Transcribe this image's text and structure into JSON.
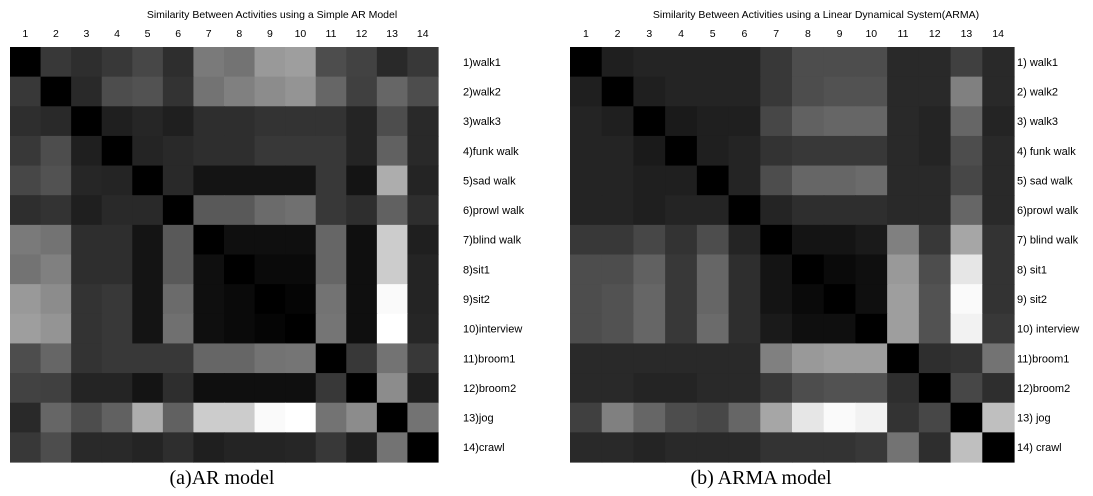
{
  "chart_data": [
    {
      "type": "heatmap",
      "title": "Similarity Between Activities using a Simple AR Model",
      "caption": "(a)AR model",
      "x_tick_labels": [
        "1",
        "2",
        "3",
        "4",
        "5",
        "6",
        "7",
        "8",
        "9",
        "10",
        "11",
        "12",
        "13",
        "14"
      ],
      "row_labels": [
        "1)walk1",
        "2)walk2",
        "3)walk3",
        "4)funk walk",
        "5)sad walk",
        "6)prowl walk",
        "7)blind walk",
        "8)sit1",
        "9)sit2",
        "10)interview",
        "11)broom1",
        "12)broom2",
        "13)jog",
        "14)crawl"
      ],
      "colormap": "grayscale (black = 0, white = 1)",
      "values": [
        [
          0.0,
          0.22,
          0.18,
          0.22,
          0.28,
          0.18,
          0.48,
          0.45,
          0.6,
          0.62,
          0.3,
          0.26,
          0.16,
          0.22
        ],
        [
          0.22,
          0.0,
          0.16,
          0.3,
          0.32,
          0.2,
          0.45,
          0.5,
          0.55,
          0.58,
          0.4,
          0.25,
          0.4,
          0.3
        ],
        [
          0.18,
          0.16,
          0.0,
          0.12,
          0.15,
          0.12,
          0.18,
          0.18,
          0.2,
          0.2,
          0.2,
          0.14,
          0.3,
          0.16
        ],
        [
          0.22,
          0.3,
          0.12,
          0.0,
          0.14,
          0.16,
          0.18,
          0.18,
          0.22,
          0.22,
          0.22,
          0.14,
          0.38,
          0.16
        ],
        [
          0.28,
          0.32,
          0.15,
          0.14,
          0.0,
          0.16,
          0.08,
          0.08,
          0.08,
          0.08,
          0.22,
          0.08,
          0.68,
          0.14
        ],
        [
          0.18,
          0.2,
          0.12,
          0.16,
          0.16,
          0.0,
          0.35,
          0.35,
          0.42,
          0.44,
          0.22,
          0.18,
          0.38,
          0.18
        ],
        [
          0.48,
          0.45,
          0.18,
          0.18,
          0.08,
          0.35,
          0.0,
          0.06,
          0.06,
          0.06,
          0.4,
          0.06,
          0.8,
          0.12
        ],
        [
          0.45,
          0.5,
          0.18,
          0.18,
          0.08,
          0.35,
          0.06,
          0.0,
          0.04,
          0.04,
          0.4,
          0.06,
          0.8,
          0.14
        ],
        [
          0.6,
          0.55,
          0.2,
          0.22,
          0.08,
          0.42,
          0.06,
          0.04,
          0.0,
          0.02,
          0.45,
          0.06,
          0.98,
          0.14
        ],
        [
          0.62,
          0.58,
          0.2,
          0.22,
          0.08,
          0.44,
          0.06,
          0.04,
          0.02,
          0.0,
          0.46,
          0.06,
          1.0,
          0.15
        ],
        [
          0.3,
          0.4,
          0.2,
          0.22,
          0.22,
          0.22,
          0.4,
          0.4,
          0.45,
          0.46,
          0.0,
          0.22,
          0.45,
          0.22
        ],
        [
          0.26,
          0.25,
          0.14,
          0.14,
          0.08,
          0.18,
          0.06,
          0.06,
          0.06,
          0.06,
          0.22,
          0.0,
          0.55,
          0.12
        ],
        [
          0.16,
          0.4,
          0.3,
          0.38,
          0.68,
          0.38,
          0.8,
          0.8,
          0.98,
          1.0,
          0.45,
          0.55,
          0.0,
          0.45
        ],
        [
          0.22,
          0.3,
          0.16,
          0.16,
          0.14,
          0.18,
          0.12,
          0.14,
          0.14,
          0.15,
          0.22,
          0.12,
          0.45,
          0.0
        ]
      ]
    },
    {
      "type": "heatmap",
      "title": "Similarity Between Activities using a Linear Dynamical System(ARMA)",
      "caption": "(b) ARMA model",
      "x_tick_labels": [
        "1",
        "2",
        "3",
        "4",
        "5",
        "6",
        "7",
        "8",
        "9",
        "10",
        "11",
        "12",
        "13",
        "14"
      ],
      "row_labels": [
        "1) walk1",
        "2) walk2",
        "3) walk3",
        "4) funk walk",
        "5) sad walk",
        "6)prowl walk",
        "7) blind walk",
        "8) sit1",
        "9) sit2",
        "10) interview",
        "11)broom1",
        "12)broom2",
        "13) jog",
        "14) crawl"
      ],
      "colormap": "grayscale (black = 0, white = 1)",
      "values": [
        [
          0.0,
          0.12,
          0.14,
          0.14,
          0.14,
          0.14,
          0.22,
          0.3,
          0.3,
          0.3,
          0.16,
          0.16,
          0.25,
          0.16
        ],
        [
          0.12,
          0.0,
          0.12,
          0.14,
          0.14,
          0.14,
          0.22,
          0.3,
          0.32,
          0.32,
          0.16,
          0.16,
          0.5,
          0.16
        ],
        [
          0.14,
          0.12,
          0.0,
          0.1,
          0.12,
          0.12,
          0.28,
          0.38,
          0.4,
          0.4,
          0.16,
          0.14,
          0.4,
          0.14
        ],
        [
          0.14,
          0.14,
          0.1,
          0.0,
          0.12,
          0.14,
          0.2,
          0.22,
          0.22,
          0.22,
          0.16,
          0.14,
          0.3,
          0.16
        ],
        [
          0.14,
          0.14,
          0.12,
          0.12,
          0.0,
          0.14,
          0.3,
          0.4,
          0.4,
          0.42,
          0.16,
          0.16,
          0.28,
          0.16
        ],
        [
          0.14,
          0.14,
          0.12,
          0.14,
          0.14,
          0.0,
          0.14,
          0.18,
          0.18,
          0.18,
          0.16,
          0.16,
          0.4,
          0.16
        ],
        [
          0.22,
          0.22,
          0.28,
          0.2,
          0.3,
          0.14,
          0.0,
          0.08,
          0.08,
          0.1,
          0.5,
          0.22,
          0.65,
          0.2
        ],
        [
          0.3,
          0.3,
          0.38,
          0.22,
          0.4,
          0.18,
          0.08,
          0.0,
          0.04,
          0.06,
          0.6,
          0.3,
          0.9,
          0.2
        ],
        [
          0.3,
          0.32,
          0.4,
          0.22,
          0.4,
          0.18,
          0.08,
          0.04,
          0.0,
          0.06,
          0.62,
          0.32,
          0.98,
          0.2
        ],
        [
          0.3,
          0.32,
          0.4,
          0.22,
          0.42,
          0.18,
          0.1,
          0.06,
          0.06,
          0.0,
          0.62,
          0.32,
          0.95,
          0.22
        ],
        [
          0.16,
          0.16,
          0.16,
          0.16,
          0.16,
          0.16,
          0.5,
          0.6,
          0.62,
          0.62,
          0.0,
          0.18,
          0.2,
          0.45
        ],
        [
          0.16,
          0.16,
          0.14,
          0.14,
          0.16,
          0.16,
          0.22,
          0.3,
          0.32,
          0.32,
          0.18,
          0.0,
          0.28,
          0.18
        ],
        [
          0.25,
          0.5,
          0.4,
          0.3,
          0.28,
          0.4,
          0.65,
          0.9,
          0.98,
          0.95,
          0.2,
          0.28,
          0.0,
          0.75
        ],
        [
          0.16,
          0.16,
          0.14,
          0.16,
          0.16,
          0.16,
          0.2,
          0.2,
          0.2,
          0.22,
          0.45,
          0.18,
          0.75,
          0.0
        ]
      ]
    }
  ]
}
